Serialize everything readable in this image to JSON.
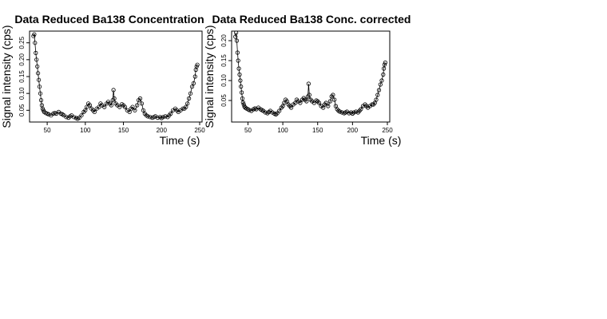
{
  "chart_data": [
    {
      "type": "scatter",
      "title": "Data Reduced Ba138 Concentration",
      "xlabel": "Time (s)",
      "ylabel": "Signal intensity (cps)",
      "xlim": [
        30,
        250
      ],
      "ylim": [
        0.02,
        0.28
      ],
      "xticks": [
        50,
        100,
        150,
        200,
        250
      ],
      "yticks": [
        0.05,
        0.1,
        0.15,
        0.2,
        0.25
      ],
      "ytick_labels": [
        "0.05",
        "0.10",
        "0.15",
        "0.20",
        "0.25"
      ],
      "grid": false,
      "legend": "none",
      "series": [
        {
          "x": [
            32,
            33,
            34,
            35,
            36,
            37,
            38,
            39,
            40,
            41,
            42,
            43,
            44,
            45,
            46,
            48,
            50,
            52,
            55,
            58,
            60,
            62,
            65,
            68,
            70,
            72,
            75,
            78,
            80,
            82,
            85,
            88,
            90,
            92,
            95,
            98,
            100,
            102,
            104,
            106,
            108,
            110,
            112,
            115,
            118,
            120,
            122,
            125,
            128,
            130,
            132,
            134,
            136,
            137,
            138,
            140,
            142,
            145,
            148,
            150,
            152,
            155,
            158,
            160,
            162,
            165,
            168,
            170,
            172,
            174,
            176,
            178,
            180,
            182,
            185,
            188,
            190,
            192,
            195,
            198,
            200,
            202,
            205,
            208,
            210,
            212,
            215,
            218,
            220,
            222,
            225,
            228,
            230,
            232,
            234,
            236,
            238,
            240,
            242,
            244,
            245,
            246,
            247
          ],
          "y": [
            0.27,
            0.275,
            0.25,
            0.22,
            0.2,
            0.18,
            0.16,
            0.14,
            0.12,
            0.1,
            0.08,
            0.065,
            0.055,
            0.05,
            0.045,
            0.042,
            0.04,
            0.038,
            0.035,
            0.04,
            0.042,
            0.04,
            0.045,
            0.04,
            0.038,
            0.035,
            0.03,
            0.028,
            0.032,
            0.035,
            0.03,
            0.027,
            0.025,
            0.028,
            0.035,
            0.045,
            0.05,
            0.06,
            0.07,
            0.065,
            0.055,
            0.05,
            0.045,
            0.055,
            0.06,
            0.07,
            0.065,
            0.06,
            0.07,
            0.075,
            0.07,
            0.065,
            0.08,
            0.11,
            0.085,
            0.07,
            0.065,
            0.06,
            0.068,
            0.065,
            0.06,
            0.05,
            0.045,
            0.055,
            0.06,
            0.05,
            0.065,
            0.08,
            0.085,
            0.07,
            0.05,
            0.04,
            0.035,
            0.032,
            0.03,
            0.028,
            0.03,
            0.032,
            0.028,
            0.03,
            0.027,
            0.03,
            0.032,
            0.03,
            0.035,
            0.04,
            0.05,
            0.055,
            0.05,
            0.045,
            0.05,
            0.055,
            0.055,
            0.06,
            0.07,
            0.085,
            0.1,
            0.12,
            0.13,
            0.15,
            0.17,
            0.18,
            0.185
          ]
        }
      ]
    },
    {
      "type": "scatter",
      "title": "Data Reduced Ba138 Conc. corrected",
      "xlabel": "Time (s)",
      "ylabel": "Signal intensity (cps)",
      "xlim": [
        30,
        250
      ],
      "ylim": [
        0.0,
        0.22
      ],
      "xticks": [
        50,
        100,
        150,
        200,
        250
      ],
      "yticks": [
        0.05,
        0.1,
        0.15,
        0.2
      ],
      "ytick_labels": [
        "0.05",
        "0.10",
        "0.15",
        "0.20"
      ],
      "grid": false,
      "legend": "none",
      "series": [
        {
          "x": [
            32,
            33,
            34,
            35,
            36,
            37,
            38,
            39,
            40,
            41,
            42,
            43,
            44,
            45,
            46,
            48,
            50,
            52,
            55,
            58,
            60,
            62,
            65,
            68,
            70,
            72,
            75,
            78,
            80,
            82,
            85,
            88,
            90,
            92,
            95,
            98,
            100,
            102,
            104,
            106,
            108,
            110,
            112,
            115,
            118,
            120,
            122,
            125,
            128,
            130,
            132,
            134,
            136,
            137,
            138,
            140,
            142,
            145,
            148,
            150,
            152,
            155,
            158,
            160,
            162,
            165,
            168,
            170,
            172,
            174,
            176,
            178,
            180,
            182,
            185,
            188,
            190,
            192,
            195,
            198,
            200,
            202,
            205,
            208,
            210,
            212,
            215,
            218,
            220,
            222,
            225,
            228,
            230,
            232,
            234,
            236,
            238,
            240,
            242,
            244,
            245,
            246,
            247
          ],
          "y": [
            0.21,
            0.22,
            0.2,
            0.17,
            0.15,
            0.13,
            0.115,
            0.1,
            0.085,
            0.07,
            0.055,
            0.045,
            0.04,
            0.035,
            0.032,
            0.03,
            0.028,
            0.026,
            0.024,
            0.028,
            0.03,
            0.028,
            0.032,
            0.028,
            0.026,
            0.024,
            0.02,
            0.018,
            0.021,
            0.024,
            0.02,
            0.017,
            0.015,
            0.018,
            0.024,
            0.032,
            0.036,
            0.044,
            0.052,
            0.048,
            0.04,
            0.036,
            0.032,
            0.04,
            0.044,
            0.052,
            0.048,
            0.044,
            0.052,
            0.056,
            0.052,
            0.048,
            0.06,
            0.092,
            0.064,
            0.052,
            0.048,
            0.044,
            0.05,
            0.048,
            0.044,
            0.036,
            0.032,
            0.04,
            0.044,
            0.036,
            0.048,
            0.06,
            0.064,
            0.052,
            0.036,
            0.028,
            0.024,
            0.022,
            0.02,
            0.018,
            0.02,
            0.022,
            0.018,
            0.02,
            0.017,
            0.02,
            0.022,
            0.02,
            0.024,
            0.028,
            0.036,
            0.04,
            0.036,
            0.032,
            0.036,
            0.04,
            0.04,
            0.044,
            0.052,
            0.064,
            0.076,
            0.09,
            0.1,
            0.115,
            0.13,
            0.14,
            0.145
          ]
        }
      ]
    }
  ]
}
